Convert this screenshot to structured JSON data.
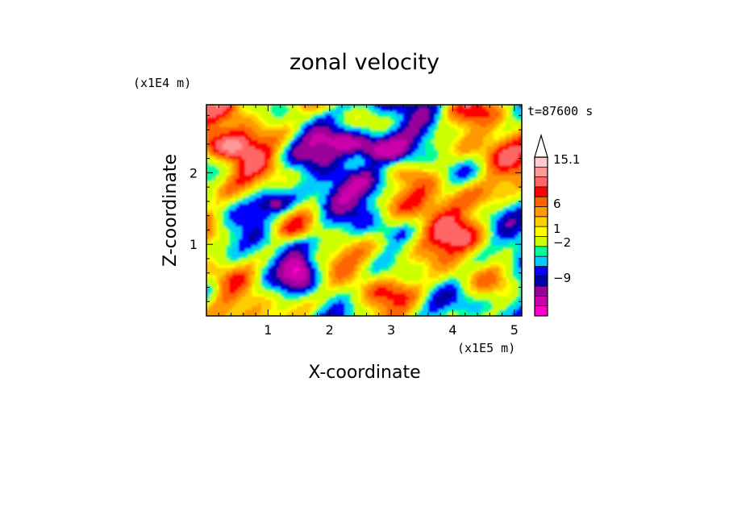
{
  "chart_data": {
    "type": "heatmap",
    "title": "zonal velocity",
    "xlabel": "X-coordinate",
    "ylabel": "Z-coordinate",
    "x_unit": "(x1E5 m)",
    "y_unit": "(x1E4 m)",
    "time_label": "t=87600 s",
    "xlim": [
      0,
      5.12
    ],
    "ylim": [
      0,
      2.95
    ],
    "x_ticks": [
      1,
      2,
      3,
      4,
      5
    ],
    "y_ticks": [
      1,
      2
    ],
    "colorbar": {
      "colors": [
        "#ff00cc",
        "#cc00aa",
        "#990099",
        "#0000aa",
        "#0000ff",
        "#00ccff",
        "#00ff99",
        "#ccff00",
        "#ffff00",
        "#ffcc00",
        "#ff9900",
        "#ff6600",
        "#ff0000",
        "#ff6666",
        "#ff9999",
        "#ffcccc"
      ],
      "labels": [
        {
          "text": "15.1",
          "value": 15.1
        },
        {
          "text": "6",
          "value": 6
        },
        {
          "text": "1",
          "value": 1
        },
        {
          "text": "−2",
          "value": -2
        },
        {
          "text": "−9",
          "value": -9
        }
      ],
      "extend": "max"
    }
  }
}
